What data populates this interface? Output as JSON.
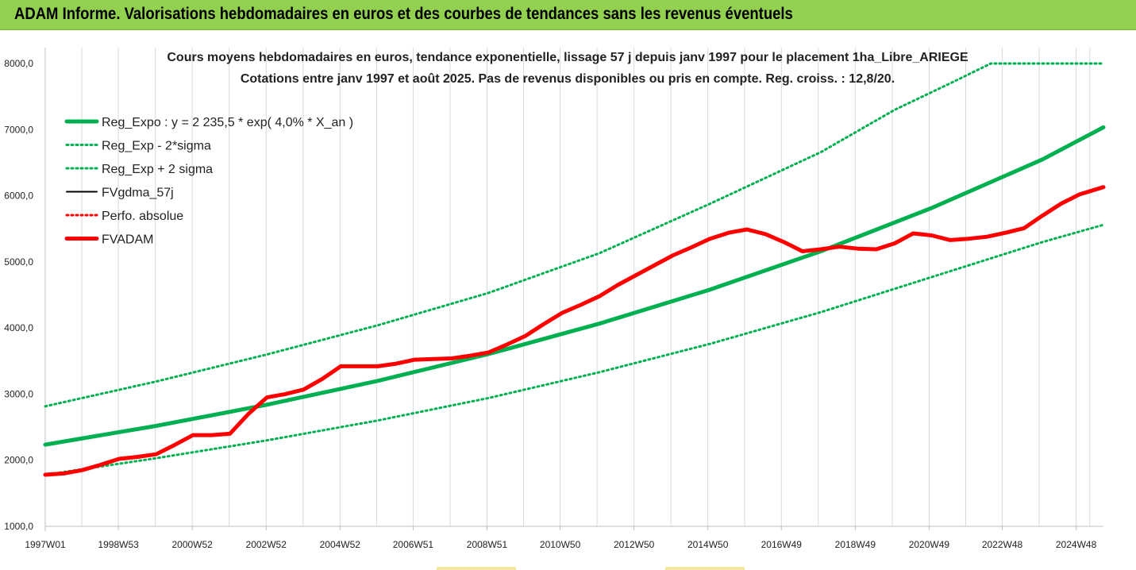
{
  "banner": {
    "title": "ADAM Informe. Valorisations hebdomadaires en euros et des courbes de tendances sans les revenus éventuels"
  },
  "colors": {
    "banner_bg": "#92d050",
    "trend": "#00b050",
    "series": "#ff0000",
    "black": "#000000"
  },
  "chart_data": {
    "type": "line",
    "title": "Cours moyens hebdomadaires en euros, tendance exponentielle, lissage 57 j depuis janv 1997 pour le placement 1ha_Libre_ARIEGE",
    "subtitle": "Cotations entre janv 1997 et août 2025. Pas de revenus disponibles ou pris en compte. Reg. croiss. : 12,8/20.",
    "xlabel": "",
    "ylabel": "",
    "x_range": [
      1997.0,
      2025.65
    ],
    "ylim": [
      1000,
      8000
    ],
    "y_ticks": [
      "1000,0",
      "2000,0",
      "3000,0",
      "4000,0",
      "5000,0",
      "6000,0",
      "7000,0",
      "8000,0"
    ],
    "x_ticks": [
      {
        "x": 1997.0,
        "label": "1997W01"
      },
      {
        "x": 1998.98,
        "label": "1998W53"
      },
      {
        "x": 2000.98,
        "label": "2000W52"
      },
      {
        "x": 2002.98,
        "label": "2002W52"
      },
      {
        "x": 2004.98,
        "label": "2004W52"
      },
      {
        "x": 2006.96,
        "label": "2006W51"
      },
      {
        "x": 2008.96,
        "label": "2008W51"
      },
      {
        "x": 2010.94,
        "label": "2010W50"
      },
      {
        "x": 2012.94,
        "label": "2012W50"
      },
      {
        "x": 2014.94,
        "label": "2014W50"
      },
      {
        "x": 2016.93,
        "label": "2016W49"
      },
      {
        "x": 2018.93,
        "label": "2018W49"
      },
      {
        "x": 2020.93,
        "label": "2020W49"
      },
      {
        "x": 2022.91,
        "label": "2022W48"
      },
      {
        "x": 2024.91,
        "label": "2024W48"
      }
    ],
    "legend_position": "top-left",
    "grid": "vertical",
    "series": [
      {
        "name": "Reg_Expo : y = 2 235,5 * exp( 4,0% *  X_an )",
        "style": "solid-thick",
        "color": "#00b050",
        "x": [
          1997.0,
          2000.0,
          2003.0,
          2006.0,
          2009.0,
          2012.0,
          2015.0,
          2018.0,
          2021.0,
          2024.0,
          2025.65
        ],
        "y": [
          2236,
          2519,
          2840,
          3200,
          3605,
          4065,
          4580,
          5160,
          5815,
          6550,
          7035
        ]
      },
      {
        "name": "Reg_Exp - 2*sigma",
        "style": "dotted",
        "color": "#00b050",
        "x": [
          1997.0,
          2000.0,
          2003.0,
          2006.0,
          2009.0,
          2012.0,
          2015.0,
          2018.0,
          2021.0,
          2024.0,
          2025.65
        ],
        "y": [
          1780,
          2030,
          2300,
          2600,
          2940,
          3330,
          3760,
          4240,
          4770,
          5300,
          5560
        ]
      },
      {
        "name": "Reg_Exp + 2 sigma",
        "style": "dotted",
        "color": "#00b050",
        "x": [
          1997.0,
          2000.0,
          2003.0,
          2006.0,
          2009.0,
          2012.0,
          2015.0,
          2018.0,
          2020.0,
          2021.5,
          2022.6,
          2025.65
        ],
        "y": [
          2815,
          3190,
          3600,
          4040,
          4530,
          5130,
          5880,
          6660,
          7300,
          7700,
          8000,
          8000
        ]
      },
      {
        "name": "FVgdma_57j",
        "style": "solid",
        "color": "#000000",
        "x": [
          1997.0,
          1997.5,
          1998.0,
          1998.5,
          1999.0,
          1999.5,
          2000.0,
          2000.5,
          2001.0,
          2001.5,
          2002.0,
          2002.5,
          2003.0,
          2003.5,
          2004.0,
          2004.5,
          2005.0,
          2005.5,
          2006.0,
          2006.5,
          2007.0,
          2007.5,
          2008.0,
          2008.5,
          2009.0,
          2009.5,
          2010.0,
          2010.5,
          2011.0,
          2011.5,
          2012.0,
          2012.5,
          2013.0,
          2013.5,
          2014.0,
          2014.5,
          2015.0,
          2015.5,
          2016.0,
          2016.5,
          2017.0,
          2017.5,
          2018.0,
          2018.5,
          2019.0,
          2019.5,
          2020.0,
          2020.5,
          2021.0,
          2021.5,
          2022.0,
          2022.5,
          2023.0,
          2023.5,
          2024.0,
          2024.5,
          2025.0,
          2025.65
        ],
        "y": [
          1780,
          1800,
          1850,
          1930,
          2020,
          2050,
          2090,
          2230,
          2380,
          2380,
          2420,
          2700,
          2950,
          3000,
          3070,
          3230,
          3420,
          3420,
          3420,
          3460,
          3520,
          3530,
          3540,
          3580,
          3630,
          3750,
          3880,
          4060,
          4230,
          4350,
          4480,
          4650,
          4800,
          4950,
          5100,
          5220,
          5350,
          5440,
          5490,
          5420,
          5300,
          5160,
          5190,
          5230,
          5200,
          5190,
          5280,
          5430,
          5400,
          5330,
          5350,
          5380,
          5440,
          5510,
          5700,
          5880,
          6020,
          6130
        ]
      },
      {
        "name": "Perfo. absolue",
        "style": "dotted",
        "color": "#ff0000",
        "x": [],
        "y": []
      },
      {
        "name": "FVADAM",
        "style": "solid-thick",
        "color": "#ff0000",
        "x": [
          1997.0,
          1997.5,
          1998.0,
          1998.5,
          1999.0,
          1999.5,
          2000.0,
          2000.5,
          2001.0,
          2001.5,
          2002.0,
          2002.5,
          2003.0,
          2003.5,
          2004.0,
          2004.5,
          2005.0,
          2005.5,
          2006.0,
          2006.5,
          2007.0,
          2007.5,
          2008.0,
          2008.5,
          2009.0,
          2009.5,
          2010.0,
          2010.5,
          2011.0,
          2011.5,
          2012.0,
          2012.5,
          2013.0,
          2013.5,
          2014.0,
          2014.5,
          2015.0,
          2015.5,
          2016.0,
          2016.5,
          2017.0,
          2017.5,
          2018.0,
          2018.5,
          2019.0,
          2019.5,
          2020.0,
          2020.5,
          2021.0,
          2021.5,
          2022.0,
          2022.5,
          2023.0,
          2023.5,
          2024.0,
          2024.5,
          2025.0,
          2025.65
        ],
        "y": [
          1780,
          1800,
          1850,
          1930,
          2020,
          2050,
          2090,
          2230,
          2380,
          2380,
          2400,
          2700,
          2950,
          3000,
          3070,
          3230,
          3420,
          3420,
          3420,
          3460,
          3520,
          3530,
          3540,
          3580,
          3630,
          3750,
          3880,
          4060,
          4230,
          4350,
          4480,
          4650,
          4800,
          4950,
          5100,
          5220,
          5350,
          5440,
          5490,
          5420,
          5300,
          5160,
          5190,
          5230,
          5200,
          5190,
          5280,
          5430,
          5400,
          5330,
          5350,
          5380,
          5440,
          5510,
          5700,
          5880,
          6020,
          6130
        ]
      }
    ]
  }
}
